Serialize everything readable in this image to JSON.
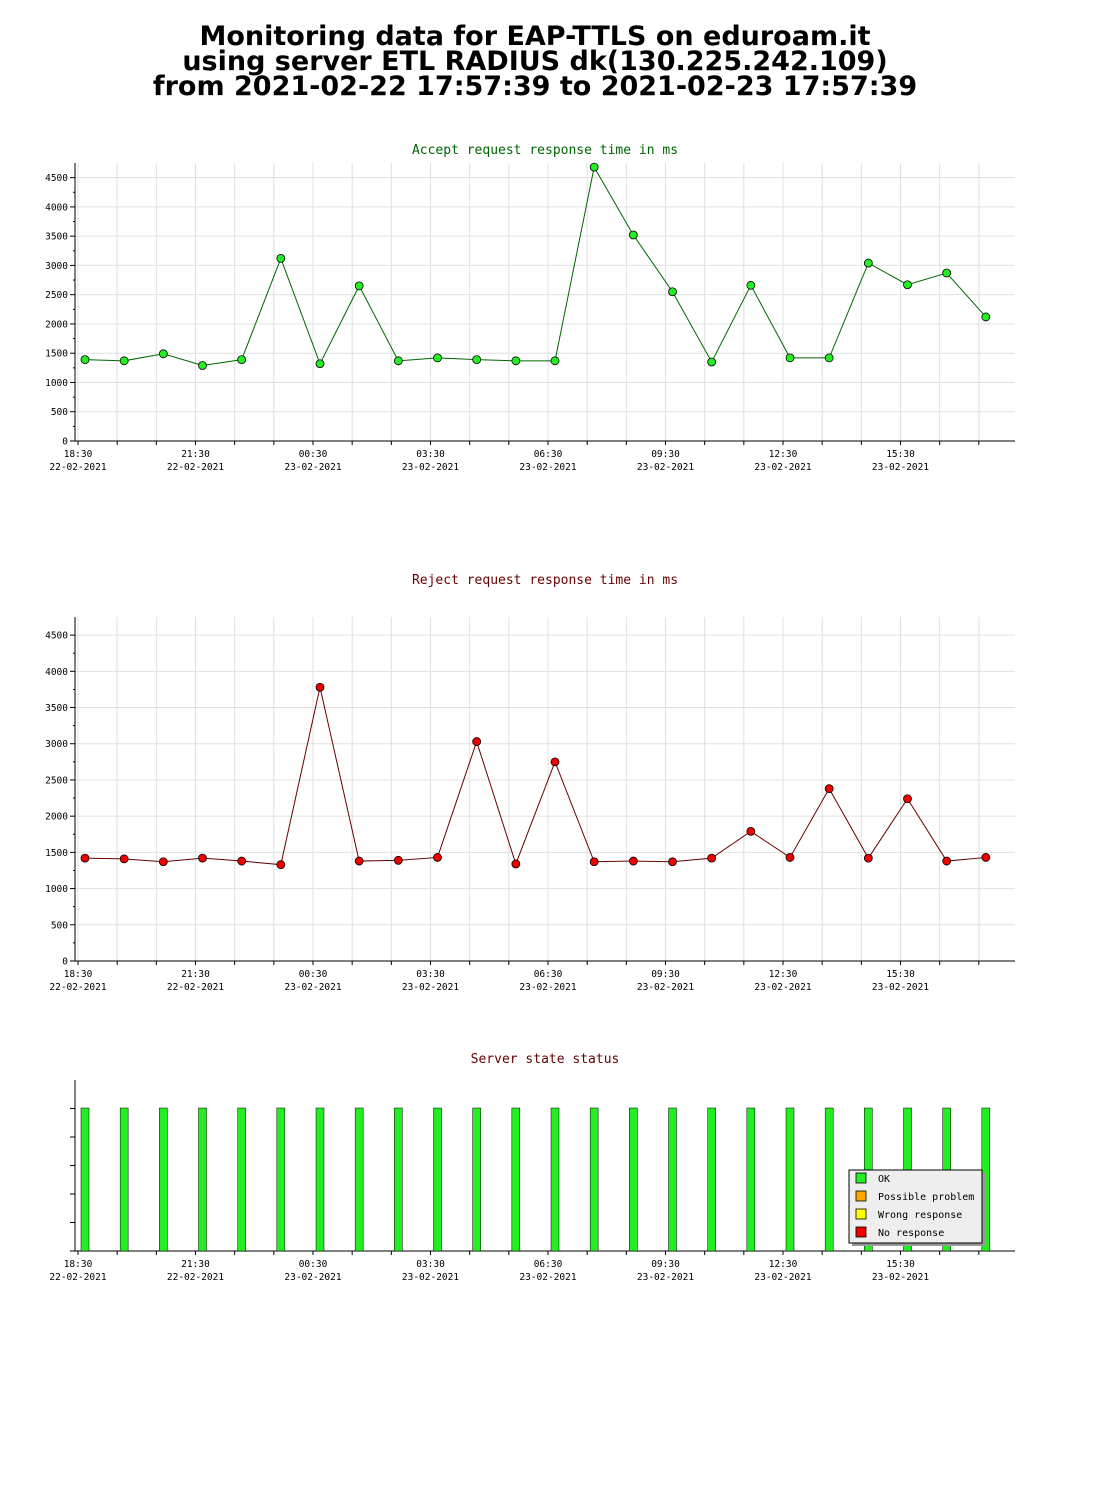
{
  "header": {
    "line1": "Monitoring data for EAP-TTLS on eduroam.it",
    "line2": "using server ETL RADIUS dk(130.225.242.109)",
    "line3": "from 2021-02-22 17:57:39 to 2021-02-23 17:57:39"
  },
  "x_ticks": [
    {
      "time": "18:30",
      "date": "22-02-2021"
    },
    {
      "time": "21:30",
      "date": "22-02-2021"
    },
    {
      "time": "00:30",
      "date": "23-02-2021"
    },
    {
      "time": "03:30",
      "date": "23-02-2021"
    },
    {
      "time": "06:30",
      "date": "23-02-2021"
    },
    {
      "time": "09:30",
      "date": "23-02-2021"
    },
    {
      "time": "12:30",
      "date": "23-02-2021"
    },
    {
      "time": "15:30",
      "date": "23-02-2021"
    }
  ],
  "chart_data": [
    {
      "type": "line",
      "title": "Accept request response time in ms",
      "title_color": "#006400",
      "marker_color": "#22ee22",
      "line_color": "#006400",
      "ylim": [
        0,
        4750
      ],
      "yticks": [
        0,
        500,
        1000,
        1500,
        2000,
        2500,
        3000,
        3500,
        4000,
        4500
      ],
      "values": [
        1390,
        1370,
        1490,
        1290,
        1390,
        3120,
        1320,
        2650,
        1370,
        1420,
        1390,
        1370,
        1370,
        4680,
        3520,
        2550,
        1350,
        2660,
        1420,
        1420,
        3040,
        2670,
        2870,
        2120
      ]
    },
    {
      "type": "line",
      "title": "Reject request response time in ms",
      "title_color": "#660000",
      "marker_color": "#ee0000",
      "line_color": "#660000",
      "ylim": [
        0,
        4750
      ],
      "yticks": [
        0,
        500,
        1000,
        1500,
        2000,
        2500,
        3000,
        3500,
        4000,
        4500
      ],
      "values": [
        1420,
        1410,
        1370,
        1420,
        1380,
        1330,
        3780,
        1380,
        1390,
        1430,
        3030,
        1340,
        2750,
        1370,
        1380,
        1370,
        1420,
        1790,
        1430,
        2380,
        1420,
        2240,
        1380,
        1430
      ]
    },
    {
      "type": "bar",
      "title": "Server state status",
      "title_color": "#660000",
      "legend": [
        {
          "label": "OK",
          "color": "#22ee22"
        },
        {
          "label": "Possible problem",
          "color": "#ffa500"
        },
        {
          "label": "Wrong response",
          "color": "#ffff00"
        },
        {
          "label": "No response",
          "color": "#ee0000"
        }
      ],
      "legend_position": "bottom-right",
      "values": [
        "OK",
        "OK",
        "OK",
        "OK",
        "OK",
        "OK",
        "OK",
        "OK",
        "OK",
        "OK",
        "OK",
        "OK",
        "OK",
        "OK",
        "OK",
        "OK",
        "OK",
        "OK",
        "OK",
        "OK",
        "OK",
        "OK",
        "OK",
        "OK"
      ]
    }
  ]
}
